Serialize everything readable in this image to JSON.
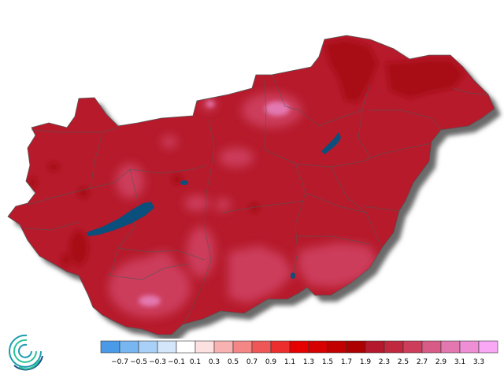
{
  "legend": {
    "colors": [
      "#4a9ae8",
      "#77b6f0",
      "#a9d1f7",
      "#d3e6fa",
      "#ffffff",
      "#fde0e0",
      "#f8b2b2",
      "#f48686",
      "#ef5757",
      "#ec2e2e",
      "#e60000",
      "#d60000",
      "#c20000",
      "#ad0000",
      "#b4182c",
      "#c0283f",
      "#cc3d5b",
      "#d85a86",
      "#e378b0",
      "#ee8fd6",
      "#f9a8f5"
    ],
    "tick_labels": [
      "−0.7",
      "−0.5",
      "−0.3",
      "−0.1",
      "0.1",
      "0.3",
      "0.5",
      "0.7",
      "0.9",
      "1.1",
      "1.3",
      "1.5",
      "1.7",
      "1.9",
      "2.3",
      "2.5",
      "2.7",
      "2.9",
      "3.1",
      "3.3"
    ]
  },
  "map": {
    "base_color": "#b61a2b",
    "border_color": "#555555",
    "water_color": "#0b4f7c",
    "shadow_color": "#6b6b6b",
    "warm_patch_color": "#cc3d5b",
    "hot_patch_color": "#e378b0",
    "dark_patch_color": "#a80d18"
  },
  "logo": {
    "colors": [
      "#1e9bb0",
      "#2bc39a",
      "#1b4f8a"
    ]
  }
}
